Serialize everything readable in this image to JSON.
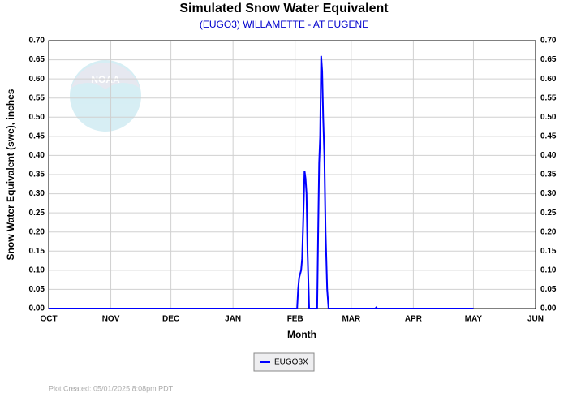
{
  "chart_data": {
    "type": "line",
    "title": "Simulated Snow Water Equivalent",
    "subtitle": "(EUGO3) WILLAMETTE - AT EUGENE",
    "x_label": "Month",
    "y_label": "Snow Water Equivalent (swe),  inches",
    "footer": "Plot Created: 05/01/2025 8:08pm PDT",
    "x": [
      0,
      124,
      124.5,
      125,
      126,
      126.5,
      127,
      127.7,
      128.2,
      128.7,
      129.2,
      130,
      134,
      134.5,
      135,
      135.5,
      136,
      136.5,
      137,
      137.6,
      138.2,
      139,
      139.7,
      163,
      163.5,
      164,
      212
    ],
    "series": [
      {
        "name": "EUGO3X",
        "color": "#0000ff",
        "values": [
          0,
          0,
          0.05,
          0.08,
          0.1,
          0.13,
          0.22,
          0.36,
          0.34,
          0.3,
          0.15,
          0,
          0,
          0.2,
          0.38,
          0.45,
          0.66,
          0.62,
          0.5,
          0.4,
          0.2,
          0.05,
          0,
          0,
          0.003,
          0,
          0
        ]
      }
    ],
    "xlim": [
      0,
      243
    ],
    "xticks": [
      {
        "value": 0,
        "label": "OCT"
      },
      {
        "value": 31,
        "label": "NOV"
      },
      {
        "value": 61,
        "label": "DEC"
      },
      {
        "value": 92,
        "label": "JAN"
      },
      {
        "value": 123,
        "label": "FEB"
      },
      {
        "value": 151,
        "label": "MAR"
      },
      {
        "value": 182,
        "label": "APR"
      },
      {
        "value": 212,
        "label": "MAY"
      },
      {
        "value": 243,
        "label": "JUN"
      }
    ],
    "ylim": [
      0,
      0.7
    ],
    "yticks": [
      {
        "value": 0,
        "label": "0.00"
      },
      {
        "value": 0.05,
        "label": "0.05"
      },
      {
        "value": 0.1,
        "label": "0.10"
      },
      {
        "value": 0.15,
        "label": "0.15"
      },
      {
        "value": 0.2,
        "label": "0.20"
      },
      {
        "value": 0.25,
        "label": "0.25"
      },
      {
        "value": 0.3,
        "label": "0.30"
      },
      {
        "value": 0.35,
        "label": "0.35"
      },
      {
        "value": 0.4,
        "label": "0.40"
      },
      {
        "value": 0.45,
        "label": "0.45"
      },
      {
        "value": 0.5,
        "label": "0.50"
      },
      {
        "value": 0.55,
        "label": "0.55"
      },
      {
        "value": 0.6,
        "label": "0.60"
      },
      {
        "value": 0.65,
        "label": "0.65"
      },
      {
        "value": 0.7,
        "label": "0.70"
      }
    ],
    "grid": true
  }
}
